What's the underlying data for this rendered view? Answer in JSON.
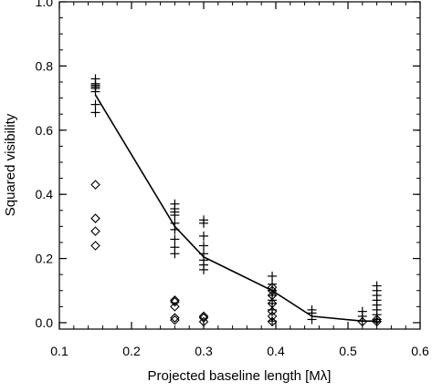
{
  "chart_data": {
    "type": "scatter",
    "title": "",
    "xlabel": "Projected baseline length [Mλ]",
    "ylabel": "Squared visibility",
    "xlim": [
      0.1,
      0.6
    ],
    "ylim": [
      -0.02,
      1.0
    ],
    "x_ticks": [
      0.1,
      0.2,
      0.3,
      0.4,
      0.5,
      0.6
    ],
    "x_tick_labels": [
      "0.1",
      "0.2",
      "0.3",
      "0.4",
      "0.5",
      "0.6"
    ],
    "y_ticks": [
      0.0,
      0.2,
      0.4,
      0.6,
      0.8,
      1.0
    ],
    "y_tick_labels": [
      "0.0",
      "0.2",
      "0.4",
      "0.6",
      "0.8",
      "1.0"
    ],
    "grid": false,
    "legend": "none",
    "series": [
      {
        "marker": "plus",
        "color": "#000000",
        "points": [
          [
            0.15,
            0.76
          ],
          [
            0.15,
            0.745
          ],
          [
            0.15,
            0.74
          ],
          [
            0.15,
            0.735
          ],
          [
            0.15,
            0.73
          ],
          [
            0.15,
            0.72
          ],
          [
            0.15,
            0.68
          ],
          [
            0.15,
            0.655
          ],
          [
            0.26,
            0.37
          ],
          [
            0.26,
            0.355
          ],
          [
            0.26,
            0.345
          ],
          [
            0.26,
            0.335
          ],
          [
            0.26,
            0.31
          ],
          [
            0.26,
            0.29
          ],
          [
            0.26,
            0.26
          ],
          [
            0.26,
            0.235
          ],
          [
            0.26,
            0.215
          ],
          [
            0.3,
            0.32
          ],
          [
            0.3,
            0.31
          ],
          [
            0.3,
            0.27
          ],
          [
            0.3,
            0.24
          ],
          [
            0.3,
            0.215
          ],
          [
            0.3,
            0.195
          ],
          [
            0.3,
            0.18
          ],
          [
            0.3,
            0.165
          ],
          [
            0.395,
            0.145
          ],
          [
            0.395,
            0.12
          ],
          [
            0.395,
            0.1
          ],
          [
            0.395,
            0.085
          ],
          [
            0.395,
            0.07
          ],
          [
            0.395,
            0.06
          ],
          [
            0.395,
            0.04
          ],
          [
            0.395,
            0.005
          ],
          [
            0.45,
            0.04
          ],
          [
            0.45,
            0.03
          ],
          [
            0.45,
            0.01
          ],
          [
            0.52,
            0.035
          ],
          [
            0.52,
            0.02
          ],
          [
            0.52,
            0.005
          ],
          [
            0.54,
            0.115
          ],
          [
            0.54,
            0.1
          ],
          [
            0.54,
            0.085
          ],
          [
            0.54,
            0.07
          ],
          [
            0.54,
            0.055
          ],
          [
            0.54,
            0.04
          ],
          [
            0.54,
            0.025
          ],
          [
            0.54,
            0.01
          ],
          [
            0.54,
            0.003
          ]
        ]
      },
      {
        "marker": "diamond",
        "color": "#000000",
        "points": [
          [
            0.15,
            0.43
          ],
          [
            0.15,
            0.325
          ],
          [
            0.15,
            0.285
          ],
          [
            0.15,
            0.24
          ],
          [
            0.26,
            0.07
          ],
          [
            0.26,
            0.065
          ],
          [
            0.26,
            0.05
          ],
          [
            0.26,
            0.015
          ],
          [
            0.26,
            0.008
          ],
          [
            0.3,
            0.02
          ],
          [
            0.3,
            0.015
          ],
          [
            0.3,
            0.003
          ],
          [
            0.395,
            0.11
          ],
          [
            0.395,
            0.1
          ],
          [
            0.395,
            0.085
          ],
          [
            0.395,
            0.06
          ],
          [
            0.395,
            0.035
          ],
          [
            0.395,
            0.02
          ],
          [
            0.395,
            0.003
          ],
          [
            0.52,
            0.003
          ],
          [
            0.54,
            0.01
          ],
          [
            0.54,
            0.003
          ]
        ]
      },
      {
        "marker": "line",
        "color": "#000000",
        "points": [
          [
            0.15,
            0.71
          ],
          [
            0.26,
            0.3
          ],
          [
            0.3,
            0.205
          ],
          [
            0.395,
            0.1
          ],
          [
            0.45,
            0.02
          ],
          [
            0.52,
            0.005
          ],
          [
            0.54,
            0.005
          ]
        ]
      }
    ]
  }
}
